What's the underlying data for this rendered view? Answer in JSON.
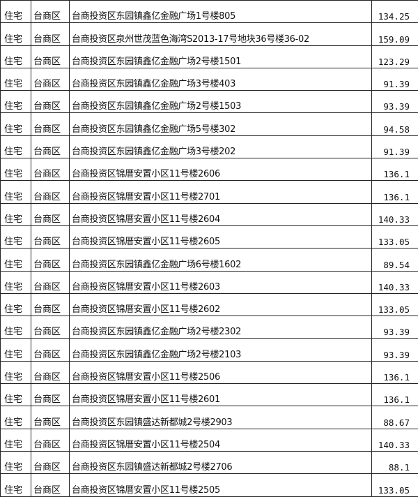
{
  "rows": [
    {
      "type": "住宅",
      "district": "台商区",
      "address": "台商投资区东园镇鑫亿金融广场1号楼805",
      "area": "134.25"
    },
    {
      "type": "住宅",
      "district": "台商区",
      "address": "台商投资区泉州世茂蓝色海湾S2013-17号地块36号楼36-02",
      "area": "159.09"
    },
    {
      "type": "住宅",
      "district": "台商区",
      "address": "台商投资区东园镇鑫亿金融广场2号楼1501",
      "area": "123.29"
    },
    {
      "type": "住宅",
      "district": "台商区",
      "address": "台商投资区东园镇鑫亿金融广场3号楼403",
      "area": "91.39"
    },
    {
      "type": "住宅",
      "district": "台商区",
      "address": "台商投资区东园镇鑫亿金融广场2号楼1503",
      "area": "93.39"
    },
    {
      "type": "住宅",
      "district": "台商区",
      "address": "台商投资区东园镇鑫亿金融广场5号楼302",
      "area": "94.58"
    },
    {
      "type": "住宅",
      "district": "台商区",
      "address": "台商投资区东园镇鑫亿金融广场3号楼202",
      "area": "91.39"
    },
    {
      "type": "住宅",
      "district": "台商区",
      "address": "台商投资区锦厝安置小区11号楼2606",
      "area": "136.1"
    },
    {
      "type": "住宅",
      "district": "台商区",
      "address": "台商投资区锦厝安置小区11号楼2701",
      "area": "136.1"
    },
    {
      "type": "住宅",
      "district": "台商区",
      "address": "台商投资区锦厝安置小区11号楼2604",
      "area": "140.33"
    },
    {
      "type": "住宅",
      "district": "台商区",
      "address": "台商投资区锦厝安置小区11号楼2605",
      "area": "133.05"
    },
    {
      "type": "住宅",
      "district": "台商区",
      "address": "台商投资区东园镇鑫亿金融广场6号楼1602",
      "area": "89.54"
    },
    {
      "type": "住宅",
      "district": "台商区",
      "address": "台商投资区锦厝安置小区11号楼2603",
      "area": "140.33"
    },
    {
      "type": "住宅",
      "district": "台商区",
      "address": "台商投资区锦厝安置小区11号楼2602",
      "area": "133.05"
    },
    {
      "type": "住宅",
      "district": "台商区",
      "address": "台商投资区东园镇鑫亿金融广场2号楼2302",
      "area": "93.39"
    },
    {
      "type": "住宅",
      "district": "台商区",
      "address": "台商投资区东园镇鑫亿金融广场2号楼2103",
      "area": "93.39"
    },
    {
      "type": "住宅",
      "district": "台商区",
      "address": "台商投资区锦厝安置小区11号楼2506",
      "area": "136.1"
    },
    {
      "type": "住宅",
      "district": "台商区",
      "address": "台商投资区锦厝安置小区11号楼2601",
      "area": "136.1"
    },
    {
      "type": "住宅",
      "district": "台商区",
      "address": "台商投资区东园镇盛达新都城2号楼2903",
      "area": "88.67"
    },
    {
      "type": "住宅",
      "district": "台商区",
      "address": "台商投资区锦厝安置小区11号楼2504",
      "area": "140.33"
    },
    {
      "type": "住宅",
      "district": "台商区",
      "address": "台商投资区东园镇盛达新都城2号楼2706",
      "area": "88.1"
    },
    {
      "type": "住宅",
      "district": "台商区",
      "address": "台商投资区锦厝安置小区11号楼2505",
      "area": "133.05"
    }
  ]
}
